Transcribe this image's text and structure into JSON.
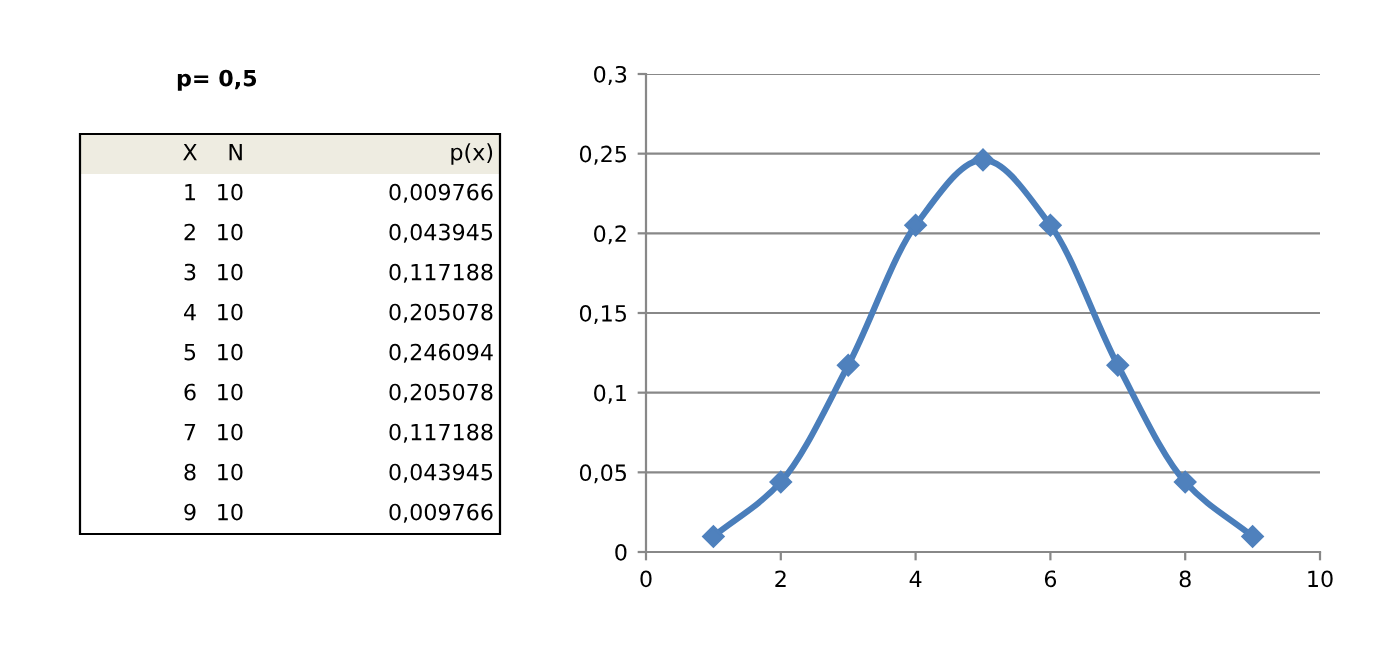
{
  "chart_data": {
    "type": "line",
    "x": [
      1,
      2,
      3,
      4,
      5,
      6,
      7,
      8,
      9
    ],
    "values": [
      0.009766,
      0.043945,
      0.117188,
      0.205078,
      0.246094,
      0.205078,
      0.117188,
      0.043945,
      0.009766
    ],
    "color": "#4a7ebb",
    "marker": "diamond",
    "line_style": "solid",
    "xlim": [
      0,
      10
    ],
    "xticks": [
      0,
      2,
      4,
      6,
      8,
      10
    ],
    "ylim": [
      0,
      0.3
    ],
    "yticks": [
      0,
      {
        "value": 0.05,
        "label": "0,05"
      },
      {
        "value": 0.1,
        "label": "0,1"
      },
      {
        "value": 0.15,
        "label": "0,15"
      },
      {
        "value": 0.2,
        "label": "0,2"
      },
      {
        "value": 0.25,
        "label": "0,25"
      },
      {
        "value": 0.3,
        "label": "0,3"
      }
    ],
    "grid": "y",
    "annotations": [
      "p= 0,5",
      "X",
      "N",
      "p(x)",
      "1",
      "10",
      "0,009766",
      "2",
      "10",
      "0,043945",
      "3",
      "10",
      "0,117188",
      "4",
      "10",
      "0,205078",
      "5",
      "10",
      "0,246094",
      "6",
      "10",
      "0,205078",
      "7",
      "10",
      "0,117188",
      "8",
      "10",
      "0,043945",
      "9",
      "10",
      "0,009766"
    ]
  }
}
